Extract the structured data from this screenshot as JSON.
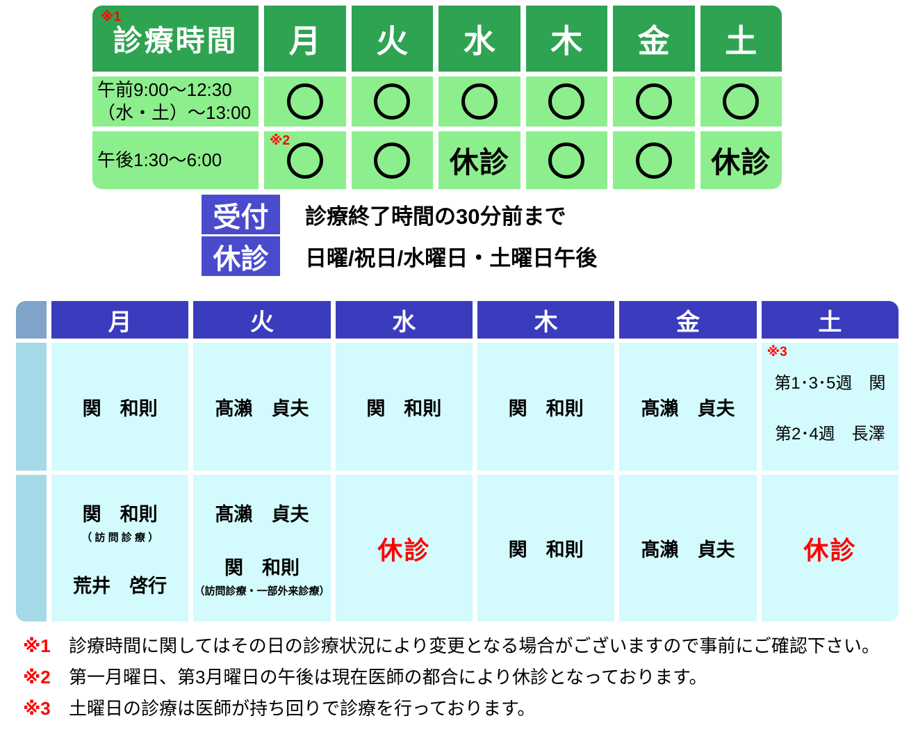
{
  "colors": {
    "header_green": "#2EA351",
    "cell_green": "#8DEE8D",
    "header_blue": "#3B3BBE",
    "badge_blue": "#4A4ACC",
    "cell_cyan": "#D3FAFC",
    "strip_blue": "#A6D9E8",
    "strip_header_blue": "#7FA3C9",
    "note_red": "#FF0000"
  },
  "hours_table": {
    "title": "診療時間",
    "title_note": "※1",
    "open_symbol": "○",
    "days": [
      "月",
      "火",
      "水",
      "木",
      "金",
      "土"
    ],
    "rows": [
      {
        "label_lines": [
          "午前9:00～12:30",
          "（水・土）～13:00"
        ],
        "cells": [
          {
            "v": "○"
          },
          {
            "v": "○"
          },
          {
            "v": "○"
          },
          {
            "v": "○"
          },
          {
            "v": "○"
          },
          {
            "v": "○"
          }
        ]
      },
      {
        "label_lines": [
          "午後1:30～6:00"
        ],
        "cells": [
          {
            "v": "○",
            "note": "※2"
          },
          {
            "v": "○"
          },
          {
            "v": "休診"
          },
          {
            "v": "○"
          },
          {
            "v": "○"
          },
          {
            "v": "休診"
          }
        ]
      }
    ]
  },
  "legend": [
    {
      "badge": "受付",
      "text": "診療終了時間の30分前まで"
    },
    {
      "badge": "休診",
      "text": "日曜/祝日/水曜日・土曜日午後"
    }
  ],
  "doctor_table": {
    "days": [
      "月",
      "火",
      "水",
      "木",
      "金",
      "土"
    ],
    "rows": [
      {
        "cells": [
          {
            "lines": [
              {
                "t": "関　和則",
                "s": "name"
              }
            ]
          },
          {
            "lines": [
              {
                "t": "髙瀨　貞夫",
                "s": "name"
              }
            ]
          },
          {
            "lines": [
              {
                "t": "関　和則",
                "s": "name"
              }
            ]
          },
          {
            "lines": [
              {
                "t": "関　和則",
                "s": "name"
              }
            ]
          },
          {
            "lines": [
              {
                "t": "髙瀨　貞夫",
                "s": "name"
              }
            ]
          },
          {
            "note": "※3",
            "lines": [
              {
                "t": "第1･3･5週　関",
                "s": "plain"
              },
              {
                "s": "spacer"
              },
              {
                "t": "第2･4週　長澤",
                "s": "plain"
              }
            ]
          }
        ]
      },
      {
        "cells": [
          {
            "lines": [
              {
                "t": "関　和則",
                "s": "name"
              },
              {
                "t": "（ 訪 問 診 療 ）",
                "s": "sub"
              },
              {
                "s": "spacer"
              },
              {
                "t": "荒井　啓行",
                "s": "name"
              }
            ]
          },
          {
            "lines": [
              {
                "t": "髙瀨　貞夫",
                "s": "name"
              },
              {
                "s": "spacer"
              },
              {
                "t": "関　和則",
                "s": "name"
              },
              {
                "t": "（訪問診療・一部外来診療）",
                "s": "sub"
              }
            ]
          },
          {
            "lines": [
              {
                "t": "休診",
                "s": "closed"
              }
            ]
          },
          {
            "lines": [
              {
                "t": "関　和則",
                "s": "name"
              }
            ]
          },
          {
            "lines": [
              {
                "t": "髙瀨　貞夫",
                "s": "name"
              }
            ]
          },
          {
            "lines": [
              {
                "t": "休診",
                "s": "closed"
              }
            ]
          }
        ]
      }
    ]
  },
  "footnotes": [
    {
      "mark": "※1",
      "text": "診療時間に関してはその日の診療状況により変更となる場合がございますので事前にご確認下さい。"
    },
    {
      "mark": "※2",
      "text": "第一月曜日、第3月曜日の午後は現在医師の都合により休診となっております。"
    },
    {
      "mark": "※3",
      "text": "土曜日の診療は医師が持ち回りで診療を行っております。"
    }
  ]
}
